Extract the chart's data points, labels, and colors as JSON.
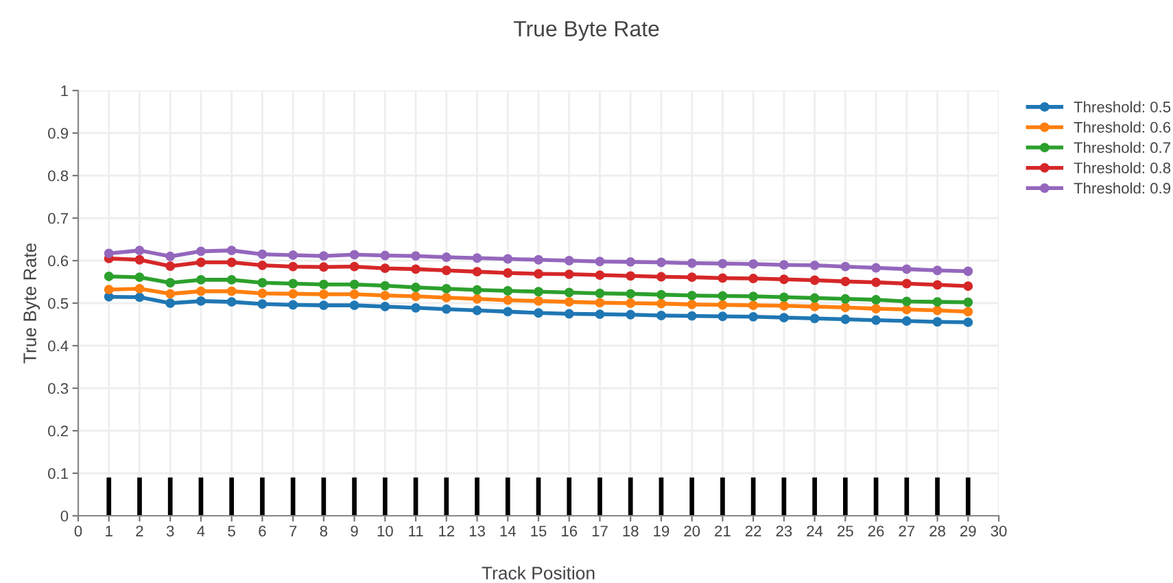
{
  "chart_data": {
    "type": "line",
    "title": "True Byte Rate",
    "xlabel": "Track Position",
    "ylabel": "True Byte Rate",
    "x": [
      1,
      2,
      3,
      4,
      5,
      6,
      7,
      8,
      9,
      10,
      11,
      12,
      13,
      14,
      15,
      16,
      17,
      18,
      19,
      20,
      21,
      22,
      23,
      24,
      25,
      26,
      27,
      28,
      29
    ],
    "xlim": [
      0,
      30
    ],
    "xticks": [
      0,
      1,
      2,
      3,
      4,
      5,
      6,
      7,
      8,
      9,
      10,
      11,
      12,
      13,
      14,
      15,
      16,
      17,
      18,
      19,
      20,
      21,
      22,
      23,
      24,
      25,
      26,
      27,
      28,
      29,
      30
    ],
    "ylim": [
      0,
      1
    ],
    "yticks": [
      0,
      0.1,
      0.2,
      0.3,
      0.4,
      0.5,
      0.6,
      0.7,
      0.8,
      0.9,
      1
    ],
    "grid": true,
    "legend": "top right",
    "marker": "circle",
    "line_style": "solid",
    "series": [
      {
        "type": "bar",
        "color": "#000000",
        "values": [
          0.09,
          0.09,
          0.09,
          0.09,
          0.09,
          0.09,
          0.09,
          0.09,
          0.09,
          0.09,
          0.09,
          0.09,
          0.09,
          0.09,
          0.09,
          0.09,
          0.09,
          0.09,
          0.09,
          0.09,
          0.09,
          0.09,
          0.09,
          0.09,
          0.09,
          0.09,
          0.09,
          0.09,
          0.09
        ]
      },
      {
        "name": "Threshold: 0.5",
        "color": "#1f77b4",
        "values": [
          0.515,
          0.514,
          0.5,
          0.505,
          0.503,
          0.498,
          0.496,
          0.495,
          0.495,
          0.492,
          0.489,
          0.486,
          0.483,
          0.48,
          0.477,
          0.475,
          0.474,
          0.473,
          0.471,
          0.47,
          0.469,
          0.468,
          0.466,
          0.464,
          0.462,
          0.46,
          0.458,
          0.456,
          0.455
        ]
      },
      {
        "name": "Threshold: 0.6",
        "color": "#ff7f0e",
        "values": [
          0.532,
          0.534,
          0.522,
          0.528,
          0.528,
          0.523,
          0.522,
          0.521,
          0.521,
          0.518,
          0.516,
          0.513,
          0.51,
          0.507,
          0.505,
          0.503,
          0.501,
          0.5,
          0.499,
          0.497,
          0.496,
          0.495,
          0.494,
          0.492,
          0.49,
          0.487,
          0.485,
          0.483,
          0.48
        ]
      },
      {
        "name": "Threshold: 0.7",
        "color": "#2ca02c",
        "values": [
          0.563,
          0.561,
          0.548,
          0.555,
          0.555,
          0.548,
          0.546,
          0.544,
          0.544,
          0.541,
          0.537,
          0.534,
          0.531,
          0.529,
          0.527,
          0.525,
          0.523,
          0.522,
          0.52,
          0.518,
          0.517,
          0.516,
          0.514,
          0.512,
          0.51,
          0.508,
          0.504,
          0.503,
          0.502
        ]
      },
      {
        "name": "Threshold: 0.8",
        "color": "#d62728",
        "values": [
          0.605,
          0.602,
          0.587,
          0.596,
          0.596,
          0.589,
          0.586,
          0.585,
          0.586,
          0.582,
          0.58,
          0.577,
          0.574,
          0.571,
          0.569,
          0.568,
          0.566,
          0.564,
          0.562,
          0.561,
          0.559,
          0.558,
          0.556,
          0.554,
          0.551,
          0.549,
          0.546,
          0.543,
          0.54
        ]
      },
      {
        "name": "Threshold: 0.9",
        "color": "#9467bd",
        "values": [
          0.617,
          0.624,
          0.61,
          0.622,
          0.624,
          0.615,
          0.613,
          0.611,
          0.614,
          0.612,
          0.611,
          0.608,
          0.606,
          0.604,
          0.602,
          0.6,
          0.598,
          0.597,
          0.596,
          0.594,
          0.593,
          0.592,
          0.59,
          0.589,
          0.586,
          0.583,
          0.58,
          0.577,
          0.575
        ]
      }
    ]
  }
}
